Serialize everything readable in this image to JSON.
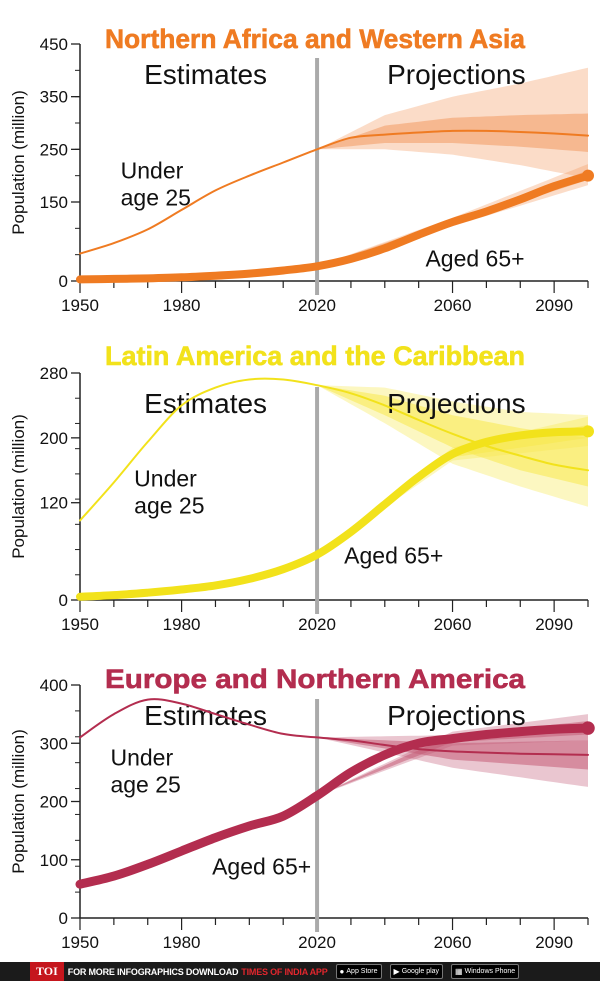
{
  "chart_data": [
    {
      "type": "line",
      "title": "Northern Africa and Western Asia",
      "title_color": "#ef7b22",
      "band_color": "#f39a62",
      "ylabel": "Population (million)",
      "ylim": [
        0,
        450
      ],
      "yticks": [
        0,
        150,
        250,
        350,
        450
      ],
      "xlim": [
        1950,
        2100
      ],
      "xticks": [
        1950,
        1980,
        2020,
        2060,
        2090
      ],
      "divider_year": 2020,
      "estimates_label": "Estimates",
      "projections_label": "Projections",
      "series": [
        {
          "name": "Under age 25",
          "color": "#ef7b22",
          "width": 2,
          "x": [
            1950,
            1960,
            1970,
            1980,
            1990,
            2000,
            2010,
            2020,
            2030,
            2040,
            2050,
            2060,
            2070,
            2080,
            2090,
            2100
          ],
          "y": [
            52,
            72,
            98,
            135,
            172,
            200,
            225,
            250,
            272,
            278,
            282,
            285,
            285,
            283,
            280,
            276
          ],
          "band_inner": {
            "x": [
              2020,
              2040,
              2060,
              2080,
              2100
            ],
            "lo": [
              250,
              262,
              262,
              255,
              245
            ],
            "hi": [
              250,
              295,
              310,
              315,
              318
            ]
          },
          "band_outer": {
            "x": [
              2020,
              2040,
              2060,
              2080,
              2100
            ],
            "lo": [
              250,
              250,
              240,
              220,
              195
            ],
            "hi": [
              250,
              315,
              350,
              375,
              405
            ]
          }
        },
        {
          "name": "Aged 65+",
          "color": "#ef7b22",
          "width": 8,
          "x": [
            1950,
            1960,
            1970,
            1980,
            1990,
            2000,
            2010,
            2020,
            2030,
            2040,
            2050,
            2060,
            2070,
            2080,
            2090,
            2100
          ],
          "y": [
            3,
            4,
            5,
            7,
            10,
            14,
            20,
            28,
            42,
            62,
            88,
            112,
            132,
            155,
            180,
            200
          ],
          "band_inner": {
            "x": [
              2020,
              2060,
              2100
            ],
            "lo": [
              28,
              108,
              192
            ],
            "hi": [
              28,
              116,
              210
            ]
          },
          "band_outer": {
            "x": [
              2020,
              2060,
              2100
            ],
            "lo": [
              28,
              104,
              182
            ],
            "hi": [
              28,
              120,
              222
            ]
          }
        }
      ],
      "labels": [
        {
          "text": [
            "Under",
            "age 25"
          ],
          "year": 1962,
          "value": 195
        },
        {
          "text": [
            "Aged 65+"
          ],
          "year": 2052,
          "value": 28
        }
      ]
    },
    {
      "type": "line",
      "title": "Latin America and the Caribbean",
      "title_color": "#f2e21b",
      "band_color": "#f7e94d",
      "ylabel": "Population (million)",
      "ylim": [
        0,
        280
      ],
      "yticks": [
        0,
        120,
        200,
        280
      ],
      "xlim": [
        1950,
        2100
      ],
      "xticks": [
        1950,
        1980,
        2020,
        2060,
        2090
      ],
      "divider_year": 2020,
      "estimates_label": "Estimates",
      "projections_label": "Projections",
      "series": [
        {
          "name": "Under age 25",
          "color": "#f2e21b",
          "width": 2,
          "x": [
            1950,
            1960,
            1970,
            1980,
            1990,
            2000,
            2010,
            2020,
            2030,
            2040,
            2050,
            2060,
            2070,
            2080,
            2090,
            2100
          ],
          "y": [
            98,
            145,
            195,
            240,
            262,
            272,
            272,
            265,
            255,
            240,
            222,
            205,
            190,
            178,
            167,
            160
          ],
          "band_inner": {
            "x": [
              2020,
              2040,
              2060,
              2080,
              2100
            ],
            "lo": [
              265,
              228,
              188,
              160,
              140
            ],
            "hi": [
              265,
              252,
              228,
              212,
              200
            ]
          },
          "band_outer": {
            "x": [
              2020,
              2040,
              2060,
              2080,
              2100
            ],
            "lo": [
              265,
              218,
              168,
              140,
              115
            ],
            "hi": [
              265,
              262,
              245,
              232,
              228
            ]
          }
        },
        {
          "name": "Aged 65+",
          "color": "#f2e21b",
          "width": 8,
          "x": [
            1950,
            1960,
            1970,
            1980,
            1990,
            2000,
            2010,
            2020,
            2030,
            2040,
            2050,
            2060,
            2070,
            2080,
            2090,
            2100
          ],
          "y": [
            4,
            6,
            9,
            13,
            18,
            26,
            38,
            56,
            84,
            118,
            152,
            180,
            195,
            203,
            207,
            208
          ],
          "band_inner": {
            "x": [
              2020,
              2060,
              2100
            ],
            "lo": [
              56,
              176,
              200
            ],
            "hi": [
              56,
              184,
              216
            ]
          },
          "band_outer": {
            "x": [
              2020,
              2060,
              2100
            ],
            "lo": [
              56,
              172,
              190
            ],
            "hi": [
              56,
              188,
              226
            ]
          }
        }
      ],
      "labels": [
        {
          "text": [
            "Under",
            "age 25"
          ],
          "year": 1966,
          "value": 140
        },
        {
          "text": [
            "Aged 65+"
          ],
          "year": 2028,
          "value": 45
        }
      ]
    },
    {
      "type": "line",
      "title": "Europe and Northern America",
      "title_color": "#b32d4f",
      "band_color": "#c45d77",
      "ylabel": "Population (million)",
      "ylim": [
        0,
        400
      ],
      "yticks": [
        0,
        100,
        200,
        300,
        400
      ],
      "xlim": [
        1950,
        2100
      ],
      "xticks": [
        1950,
        1980,
        2020,
        2060,
        2090
      ],
      "divider_year": 2020,
      "estimates_label": "Estimates",
      "projections_label": "Projections",
      "series": [
        {
          "name": "Under age 25",
          "color": "#b32d4f",
          "width": 2,
          "x": [
            1950,
            1960,
            1970,
            1980,
            1990,
            2000,
            2010,
            2020,
            2030,
            2040,
            2050,
            2060,
            2070,
            2080,
            2090,
            2100
          ],
          "y": [
            310,
            350,
            375,
            368,
            350,
            332,
            316,
            310,
            305,
            297,
            290,
            286,
            284,
            282,
            281,
            280
          ],
          "band_inner": {
            "x": [
              2020,
              2060,
              2100
            ],
            "lo": [
              310,
              272,
              255
            ],
            "hi": [
              310,
              300,
              305
            ]
          },
          "band_outer": {
            "x": [
              2020,
              2060,
              2100
            ],
            "lo": [
              310,
              258,
              225
            ],
            "hi": [
              310,
              314,
              335
            ]
          }
        },
        {
          "name": "Aged 65+",
          "color": "#b32d4f",
          "width": 9,
          "x": [
            1950,
            1960,
            1970,
            1980,
            1990,
            2000,
            2010,
            2020,
            2030,
            2040,
            2050,
            2060,
            2070,
            2080,
            2090,
            2100
          ],
          "y": [
            58,
            72,
            92,
            115,
            138,
            158,
            175,
            210,
            250,
            280,
            300,
            308,
            315,
            320,
            324,
            326
          ],
          "band_inner": {
            "x": [
              2020,
              2060,
              2100
            ],
            "lo": [
              210,
              302,
              315
            ],
            "hi": [
              210,
              314,
              338
            ]
          },
          "band_outer": {
            "x": [
              2020,
              2060,
              2100
            ],
            "lo": [
              210,
              296,
              305
            ],
            "hi": [
              210,
              320,
              350
            ]
          }
        }
      ],
      "labels": [
        {
          "text": [
            "Under",
            "age 25"
          ],
          "year": 1959,
          "value": 262
        },
        {
          "text": [
            "Aged 65+"
          ],
          "year": 1989,
          "value": 75
        }
      ]
    }
  ],
  "footer": {
    "brand_badge": "TOI",
    "cta": "FOR MORE INFOGRAPHICS DOWNLOAD",
    "app_name": "TIMES OF INDIA APP",
    "stores": [
      {
        "icon": "apple-icon",
        "label": "App Store"
      },
      {
        "icon": "google-play-icon",
        "label": "Google play"
      },
      {
        "icon": "windows-icon",
        "label": "Windows Phone"
      }
    ]
  }
}
